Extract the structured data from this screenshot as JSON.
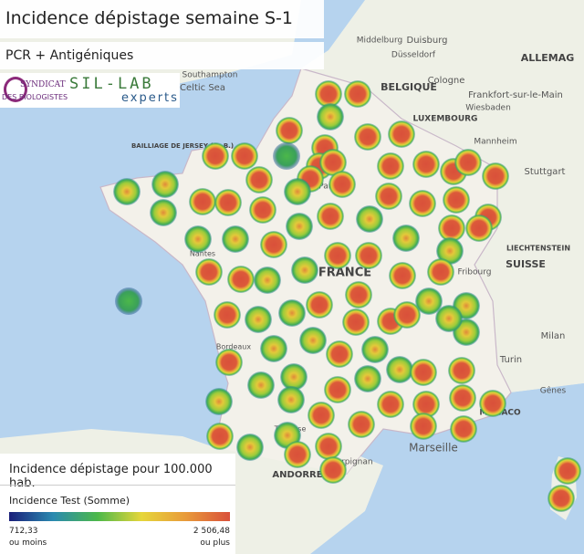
{
  "header": {
    "title": "Incidence dépistage semaine S-1",
    "subtitle": "PCR + Antigéniques"
  },
  "logo": {
    "left_top": "SYNDICAT",
    "left_bottom": "DES BIOLOGISTES",
    "right_top": "SIL-LAB",
    "right_bottom": "experts"
  },
  "legend": {
    "title": "Incidence dépistage pour 100.000 hab.",
    "measure": "Incidence Test (Somme)",
    "min": "712,33",
    "min_note": "ou moins",
    "max": "2 506,48",
    "max_note": "ou plus"
  },
  "map_labels": [
    "BELGIQUE",
    "LUXEMBOURG",
    "ALLEMAG",
    "FRANCE",
    "SUISSE",
    "LIECHTENSTEIN",
    "MONACO",
    "ANDORRE",
    "Southampton",
    "Celtic Sea",
    "BAILLIAGE DE JERSEY (G.-B.)",
    "Middelburg",
    "Duisburg",
    "Düsseldorf",
    "Cologne",
    "Frankfort-sur-le-Main",
    "Wiesbaden",
    "Mannheim",
    "Stuttgart",
    "Fribourg",
    "Milan",
    "Turin",
    "Gênes",
    "Nantes",
    "Paris",
    "Marseille",
    "Perpignan",
    "Toulouse",
    "Bordeaux"
  ]
}
